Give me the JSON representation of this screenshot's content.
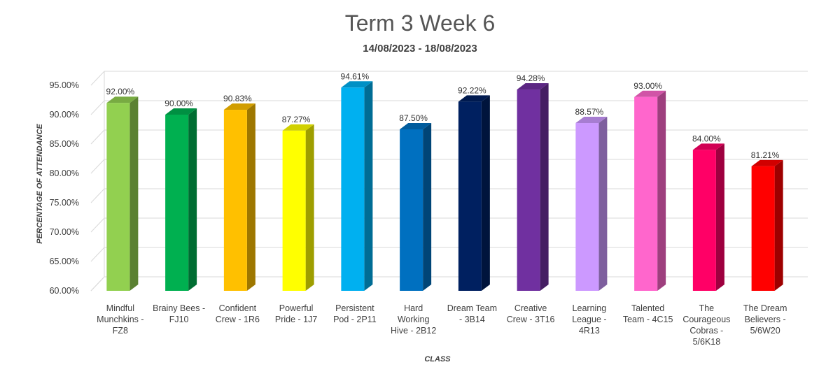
{
  "chart_data": {
    "type": "bar",
    "title": "Term 3 Week 6",
    "subtitle": "14/08/2023 - 18/08/2023",
    "xlabel": "CLASS",
    "ylabel": "PERCENTAGE OF ATTENDANCE",
    "ylim": [
      60,
      95
    ],
    "yticks": [
      "60.00%",
      "65.00%",
      "70.00%",
      "75.00%",
      "80.00%",
      "85.00%",
      "90.00%",
      "95.00%"
    ],
    "ytick_values": [
      60,
      65,
      70,
      75,
      80,
      85,
      90,
      95
    ],
    "grid": true,
    "style": "3d-column",
    "categories": [
      [
        "Mindful",
        "Munchkins -",
        "FZ8"
      ],
      [
        "Brainy Bees -",
        "FJ10"
      ],
      [
        "Confident",
        "Crew - 1R6"
      ],
      [
        "Powerful",
        "Pride - 1J7"
      ],
      [
        "Persistent",
        "Pod - 2P11"
      ],
      [
        "Hard",
        "Working",
        "Hive - 2B12"
      ],
      [
        "Dream Team",
        "- 3B14"
      ],
      [
        "Creative",
        "Crew - 3T16"
      ],
      [
        "Learning",
        "League -",
        "4R13"
      ],
      [
        "Talented",
        "Team - 4C15"
      ],
      [
        "The",
        "Courageous",
        "Cobras -",
        "5/6K18"
      ],
      [
        "The Dream",
        "Believers -",
        "5/6W20"
      ]
    ],
    "values": [
      92.0,
      90.0,
      90.83,
      87.27,
      94.61,
      87.5,
      92.22,
      94.28,
      88.57,
      93.0,
      84.0,
      81.21
    ],
    "data_labels": [
      "92.00%",
      "90.00%",
      "90.83%",
      "87.27%",
      "94.61%",
      "87.50%",
      "92.22%",
      "94.28%",
      "88.57%",
      "93.00%",
      "84.00%",
      "81.21%"
    ],
    "colors": [
      "#92D050",
      "#00B050",
      "#FFC000",
      "#FFFF00",
      "#00B0F0",
      "#0070C0",
      "#002060",
      "#7030A0",
      "#CC99FF",
      "#FF66CC",
      "#FF0066",
      "#FF0000"
    ]
  }
}
